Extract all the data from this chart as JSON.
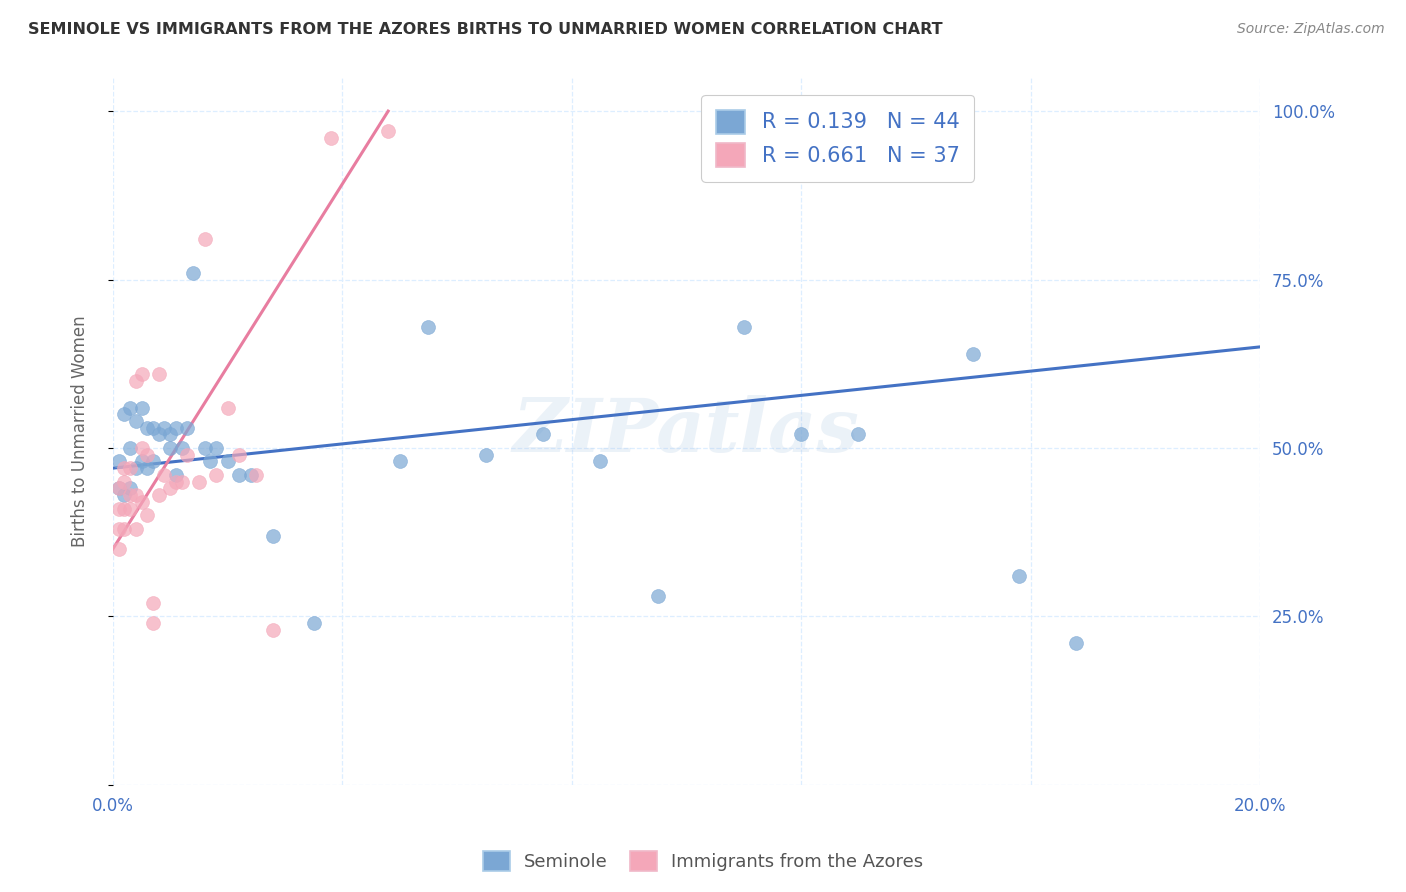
{
  "title": "SEMINOLE VS IMMIGRANTS FROM THE AZORES BIRTHS TO UNMARRIED WOMEN CORRELATION CHART",
  "source": "Source: ZipAtlas.com",
  "ylabel_label": "Births to Unmarried Women",
  "x_min": 0.0,
  "x_max": 0.2,
  "y_min": 0.0,
  "y_max": 1.05,
  "x_ticks": [
    0.0,
    0.04,
    0.08,
    0.12,
    0.16,
    0.2
  ],
  "x_tick_labels": [
    "0.0%",
    "",
    "",
    "",
    "",
    "20.0%"
  ],
  "y_ticks": [
    0.0,
    0.25,
    0.5,
    0.75,
    1.0
  ],
  "y_right_tick_labels": [
    "",
    "25.0%",
    "50.0%",
    "75.0%",
    "100.0%"
  ],
  "blue_color": "#7BA7D4",
  "pink_color": "#F4A7B9",
  "line_blue": "#4472C4",
  "line_pink": "#E87DA0",
  "legend_R_blue": "0.139",
  "legend_N_blue": "44",
  "legend_R_pink": "0.661",
  "legend_N_pink": "37",
  "legend_label_blue": "Seminole",
  "legend_label_pink": "Immigrants from the Azores",
  "watermark": "ZIPatlas",
  "blue_scatter_x": [
    0.001,
    0.001,
    0.002,
    0.002,
    0.003,
    0.003,
    0.003,
    0.004,
    0.004,
    0.005,
    0.005,
    0.006,
    0.006,
    0.007,
    0.007,
    0.008,
    0.009,
    0.01,
    0.01,
    0.011,
    0.011,
    0.012,
    0.013,
    0.014,
    0.016,
    0.017,
    0.018,
    0.02,
    0.022,
    0.024,
    0.028,
    0.035,
    0.05,
    0.055,
    0.065,
    0.075,
    0.085,
    0.095,
    0.11,
    0.12,
    0.13,
    0.15,
    0.158,
    0.168
  ],
  "blue_scatter_y": [
    0.44,
    0.48,
    0.43,
    0.55,
    0.44,
    0.5,
    0.56,
    0.47,
    0.54,
    0.48,
    0.56,
    0.47,
    0.53,
    0.53,
    0.48,
    0.52,
    0.53,
    0.5,
    0.52,
    0.46,
    0.53,
    0.5,
    0.53,
    0.76,
    0.5,
    0.48,
    0.5,
    0.48,
    0.46,
    0.46,
    0.37,
    0.24,
    0.48,
    0.68,
    0.49,
    0.52,
    0.48,
    0.28,
    0.68,
    0.52,
    0.52,
    0.64,
    0.31,
    0.21
  ],
  "pink_scatter_x": [
    0.001,
    0.001,
    0.001,
    0.001,
    0.002,
    0.002,
    0.002,
    0.002,
    0.003,
    0.003,
    0.003,
    0.004,
    0.004,
    0.004,
    0.005,
    0.005,
    0.005,
    0.006,
    0.006,
    0.007,
    0.007,
    0.008,
    0.008,
    0.009,
    0.01,
    0.011,
    0.012,
    0.013,
    0.015,
    0.016,
    0.018,
    0.02,
    0.022,
    0.025,
    0.028,
    0.038,
    0.048
  ],
  "pink_scatter_y": [
    0.38,
    0.35,
    0.41,
    0.44,
    0.38,
    0.41,
    0.45,
    0.47,
    0.41,
    0.43,
    0.47,
    0.38,
    0.43,
    0.6,
    0.42,
    0.5,
    0.61,
    0.4,
    0.49,
    0.24,
    0.27,
    0.43,
    0.61,
    0.46,
    0.44,
    0.45,
    0.45,
    0.49,
    0.45,
    0.81,
    0.46,
    0.56,
    0.49,
    0.46,
    0.23,
    0.96,
    0.97
  ],
  "blue_line_x": [
    0.0,
    0.2
  ],
  "blue_line_y": [
    0.47,
    0.65
  ],
  "pink_line_x": [
    0.0,
    0.048
  ],
  "pink_line_y": [
    0.35,
    1.0
  ],
  "background_color": "#FFFFFF",
  "grid_color": "#DDEEFF",
  "title_color": "#333333",
  "source_color": "#888888",
  "tick_label_color": "#4472C4"
}
